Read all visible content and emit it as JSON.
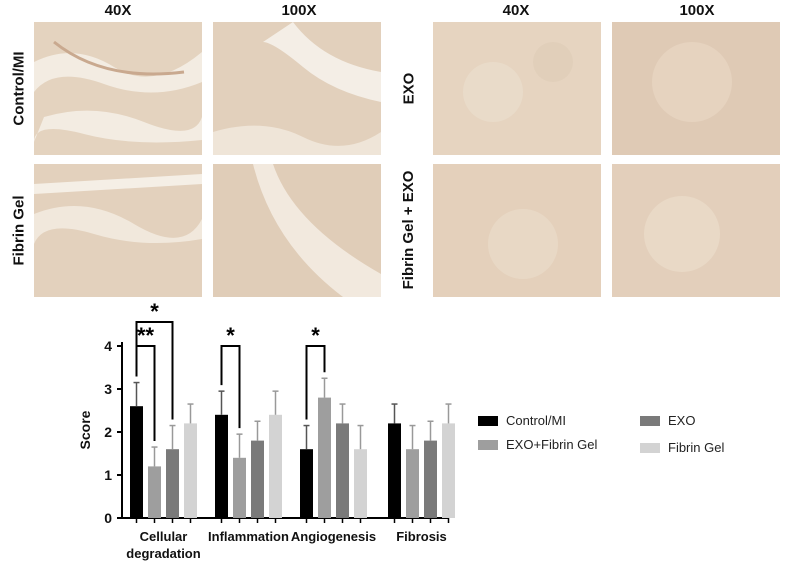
{
  "figure": {
    "left_panel": {
      "col_labels": [
        "40X",
        "100X"
      ],
      "row_labels": [
        "Control/MI",
        "Fibrin Gel"
      ]
    },
    "right_panel": {
      "col_labels": [
        "40X",
        "100X"
      ],
      "row_labels": [
        "EXO",
        "Fibrin Gel + EXO"
      ]
    }
  },
  "chart_data": {
    "type": "bar",
    "ylabel": "Score",
    "ylim": [
      0,
      4
    ],
    "yticks": [
      "0",
      "1",
      "2",
      "3",
      "4"
    ],
    "categories": [
      "Cellular degradation",
      "Inflammation",
      "Angiogenesis",
      "Fibrosis"
    ],
    "series": [
      {
        "name": "Control/MI",
        "color": "#000000",
        "values": [
          2.6,
          2.4,
          1.6,
          2.2
        ],
        "errors": [
          0.55,
          0.55,
          0.55,
          0.45
        ]
      },
      {
        "name": "EXO+Fibrin Gel",
        "color": "#9e9e9e",
        "values": [
          1.2,
          1.4,
          2.8,
          1.6
        ],
        "errors": [
          0.45,
          0.55,
          0.45,
          0.55
        ]
      },
      {
        "name": "EXO",
        "color": "#7a7a7a",
        "values": [
          1.6,
          1.8,
          2.2,
          1.8
        ],
        "errors": [
          0.55,
          0.45,
          0.45,
          0.45
        ]
      },
      {
        "name": "Fibrin Gel",
        "color": "#d3d3d3",
        "values": [
          2.2,
          2.4,
          1.6,
          2.2
        ],
        "errors": [
          0.45,
          0.55,
          0.55,
          0.45
        ]
      }
    ],
    "significance": [
      {
        "category": 0,
        "from_series": 0,
        "to_series": 1,
        "label": "**"
      },
      {
        "category": 0,
        "from_series": 0,
        "to_series": 2,
        "label": "*"
      },
      {
        "category": 1,
        "from_series": 0,
        "to_series": 1,
        "label": "*"
      },
      {
        "category": 2,
        "from_series": 0,
        "to_series": 1,
        "label": "*"
      }
    ]
  }
}
